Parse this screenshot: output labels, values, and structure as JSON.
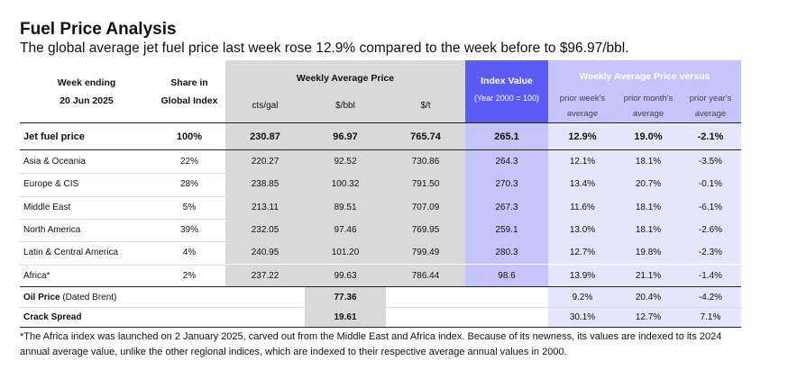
{
  "title": "Fuel Price Analysis",
  "subtitle": "The global average jet fuel price last week rose 12.9% compared to the week before to $96.97/bbl.",
  "header": {
    "week_ending_label": "Week ending",
    "week_ending_date": "20 Jun 2025",
    "share_label_1": "Share in",
    "share_label_2": "Global Index",
    "weekly_avg_label": "Weekly Average Price",
    "unit_cts": "cts/gal",
    "unit_bbl": "$/bbl",
    "unit_t": "$/t",
    "index_label": "Index Value",
    "index_sub": "(Year 2000 = 100)",
    "versus_label": "Weekly Average Price versus",
    "prior_week_1": "prior week's",
    "prior_week_2": "average",
    "prior_month_1": "prior month's",
    "prior_month_2": "average",
    "prior_year_1": "prior year's",
    "prior_year_2": "average"
  },
  "jet_fuel": {
    "label": "Jet fuel price",
    "share": "100%",
    "cts": "230.87",
    "bbl": "96.97",
    "t": "765.74",
    "index": "265.1",
    "week": "12.9%",
    "month": "19.0%",
    "year": "-2.1%"
  },
  "regions": [
    {
      "label": "Asia & Oceania",
      "share": "22%",
      "cts": "220.27",
      "bbl": "92.52",
      "t": "730.86",
      "index": "264.3",
      "week": "12.1%",
      "month": "18.1%",
      "year": "-3.5%"
    },
    {
      "label": "Europe & CIS",
      "share": "28%",
      "cts": "238.85",
      "bbl": "100.32",
      "t": "791.50",
      "index": "270.3",
      "week": "13.4%",
      "month": "20.7%",
      "year": "-0.1%"
    },
    {
      "label": "Middle East",
      "share": "5%",
      "cts": "213.11",
      "bbl": "89.51",
      "t": "707.09",
      "index": "267.3",
      "week": "11.6%",
      "month": "18.1%",
      "year": "-6.1%"
    },
    {
      "label": "North America",
      "share": "39%",
      "cts": "232.05",
      "bbl": "97.46",
      "t": "769.95",
      "index": "259.1",
      "week": "13.0%",
      "month": "18.1%",
      "year": "-2.6%"
    },
    {
      "label": "Latin & Central America",
      "share": "4%",
      "cts": "240.95",
      "bbl": "101.20",
      "t": "799.49",
      "index": "280.3",
      "week": "12.7%",
      "month": "19.8%",
      "year": "-2.3%"
    },
    {
      "label": "Africa*",
      "share": "2%",
      "cts": "237.22",
      "bbl": "99.63",
      "t": "786.44",
      "index": "98.6",
      "week": "13.9%",
      "month": "21.1%",
      "year": "-1.4%"
    }
  ],
  "oil_price": {
    "label_bold": "Oil Price",
    "label_rest": " (Dated Brent)",
    "bbl": "77.36",
    "week": "9.2%",
    "month": "20.4%",
    "year": "-4.2%"
  },
  "crack_spread": {
    "label": "Crack Spread",
    "bbl": "19.61",
    "week": "30.1%",
    "month": "12.7%",
    "year": "7.1%"
  },
  "footnote": "*The Africa index was launched on 2 January 2025, carved out from the Middle East and Africa index. Because of its newness, its values are indexed to its 2024 annual average value, unlike the other regional indices, which are indexed to their respective average annual values in 2000.",
  "colors": {
    "index_header": "#5b5bf5",
    "versus_header": "#c5c5fb",
    "gray": "#d9d9d9"
  }
}
